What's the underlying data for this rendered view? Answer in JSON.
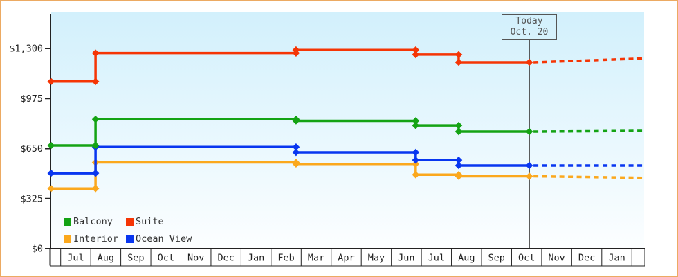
{
  "frame": {
    "border_color": "#ecaa62",
    "background": "#ffffff"
  },
  "plot": {
    "bg_top": "#d2f0fc",
    "bg_bottom": "#fcfeff",
    "axis_color": "#222222",
    "today_line_color": "#3c3c3c"
  },
  "legend": {
    "items": [
      {
        "label": "Balcony",
        "color": "#14a314"
      },
      {
        "label": "Suite",
        "color": "#f53505"
      },
      {
        "label": "Interior",
        "color": "#fba81d"
      },
      {
        "label": "Ocean View",
        "color": "#0836f0"
      }
    ]
  },
  "chart_data": {
    "type": "line",
    "subtype": "step-price-history-with-projection",
    "title": "",
    "xlabel": "",
    "ylabel": "",
    "x_months": [
      "Jul",
      "Aug",
      "Sep",
      "Oct",
      "Nov",
      "Dec",
      "Jan",
      "Feb",
      "Mar",
      "Apr",
      "May",
      "Jun",
      "Jul",
      "Aug",
      "Sep",
      "Oct",
      "Nov",
      "Dec",
      "Jan"
    ],
    "y_ticks": [
      {
        "label": "$1,300",
        "value": 1300
      },
      {
        "label": "$975",
        "value": 975
      },
      {
        "label": "$650",
        "value": 650
      },
      {
        "label": "$325",
        "value": 325
      },
      {
        "label": "$0",
        "value": 0
      }
    ],
    "ylim": [
      0,
      1300
    ],
    "grid": false,
    "legend_position": "inside-bottom-left",
    "today": {
      "label": "Today",
      "date": "Oct. 20",
      "month_pos": 15.59
    },
    "series": [
      {
        "name": "Interior",
        "color": "#fba81d",
        "points": [
          {
            "month_pos": -0.32,
            "price": 390
          },
          {
            "month_pos": 1.16,
            "price": 560
          },
          {
            "month_pos": 7.83,
            "price": 550
          },
          {
            "month_pos": 11.81,
            "price": 480
          },
          {
            "month_pos": 13.24,
            "price": 470
          }
        ],
        "projected_price": 460
      },
      {
        "name": "Ocean View",
        "color": "#0836f0",
        "points": [
          {
            "month_pos": -0.32,
            "price": 490
          },
          {
            "month_pos": 1.16,
            "price": 660
          },
          {
            "month_pos": 7.83,
            "price": 625
          },
          {
            "month_pos": 11.81,
            "price": 575
          },
          {
            "month_pos": 13.24,
            "price": 540
          }
        ],
        "projected_price": 540
      },
      {
        "name": "Balcony",
        "color": "#14a314",
        "points": [
          {
            "month_pos": -0.32,
            "price": 670
          },
          {
            "month_pos": 1.16,
            "price": 840
          },
          {
            "month_pos": 7.83,
            "price": 830
          },
          {
            "month_pos": 11.81,
            "price": 800
          },
          {
            "month_pos": 13.24,
            "price": 760
          }
        ],
        "projected_price": 765
      },
      {
        "name": "Suite",
        "color": "#f53505",
        "points": [
          {
            "month_pos": -0.32,
            "price": 1085
          },
          {
            "month_pos": 1.16,
            "price": 1270
          },
          {
            "month_pos": 7.83,
            "price": 1290
          },
          {
            "month_pos": 11.81,
            "price": 1260
          },
          {
            "month_pos": 13.24,
            "price": 1210
          }
        ],
        "projected_price": 1235
      }
    ]
  }
}
